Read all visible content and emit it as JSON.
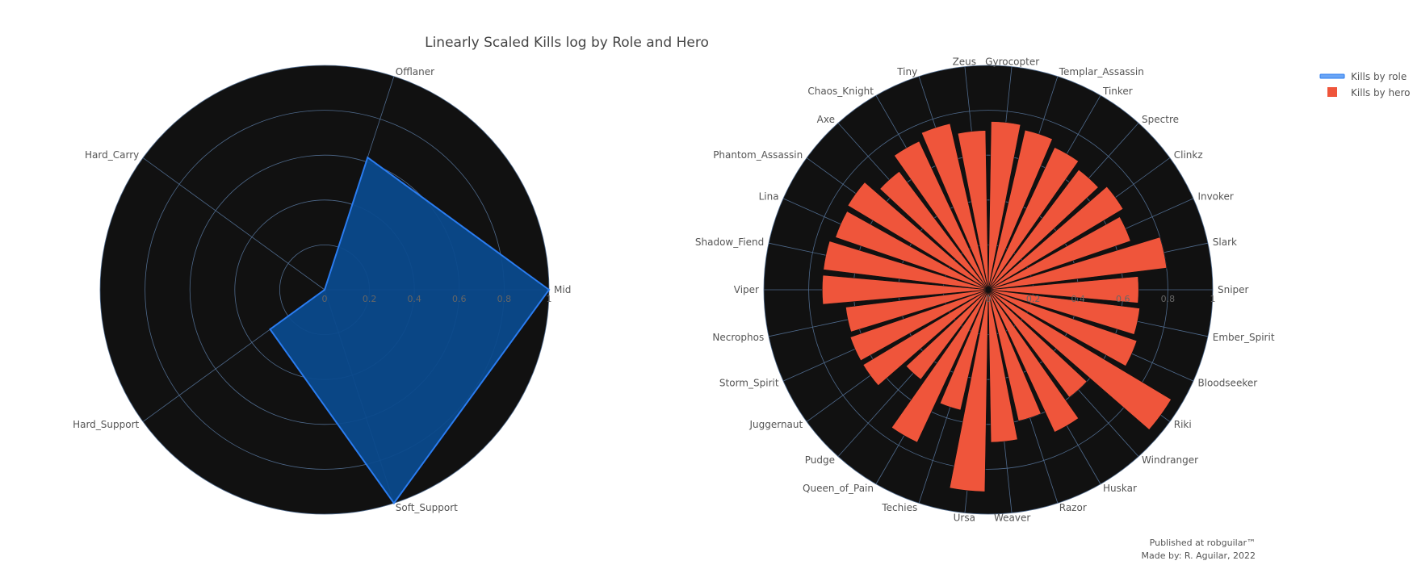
{
  "title": "Linearly Scaled Kills log by Role and Hero",
  "colors": {
    "background": "#ffffff",
    "polar_bg": "#111111",
    "grid": "#4f6a8c",
    "role_fill": "#0b4a8c",
    "role_line": "#2a7cf0",
    "hero_bar": "#ef553b"
  },
  "chart_data": [
    {
      "type": "radar",
      "name": "Kills by role",
      "categories": [
        "Mid",
        "Offlaner",
        "Hard_Carry",
        "Hard_Support",
        "Soft_Support"
      ],
      "values": [
        1.0,
        0.62,
        0.0,
        0.3,
        1.0
      ],
      "radial_range": [
        0,
        1
      ],
      "radial_ticks": [
        "0",
        "0.2",
        "0.4",
        "0.6",
        "0.8",
        "1"
      ]
    },
    {
      "type": "barpolar",
      "name": "Kills by hero",
      "categories": [
        "Sniper",
        "Slark",
        "Invoker",
        "Clinkz",
        "Spectre",
        "Tinker",
        "Templar_Assassin",
        "Gyrocopter",
        "Zeus",
        "Tiny",
        "Chaos_Knight",
        "Axe",
        "Phantom_Assassin",
        "Lina",
        "Shadow_Fiend",
        "Viper",
        "Necrophos",
        "Storm_Spirit",
        "Juggernaut",
        "Pudge",
        "Queen_of_Pain",
        "Techies",
        "Ursa",
        "Weaver",
        "Razor",
        "Huskar",
        "Windranger",
        "Riki",
        "Bloodseeker",
        "Ember_Spirit"
      ],
      "values": [
        0.67,
        0.8,
        0.67,
        0.7,
        0.67,
        0.7,
        0.73,
        0.75,
        0.71,
        0.76,
        0.73,
        0.66,
        0.73,
        0.72,
        0.74,
        0.74,
        0.64,
        0.65,
        0.65,
        0.5,
        0.75,
        0.55,
        0.9,
        0.68,
        0.6,
        0.7,
        0.6,
        0.95,
        0.7,
        0.68
      ],
      "radial_range": [
        0,
        1
      ],
      "radial_ticks": [
        "0",
        "0.2",
        "0.4",
        "0.6",
        "0.8",
        "1"
      ]
    }
  ],
  "legend": {
    "items": [
      {
        "label": "Kills by role",
        "symbol": "line"
      },
      {
        "label": "Kills by hero",
        "symbol": "square"
      }
    ]
  },
  "footer": {
    "line1": "Published at robguilar™",
    "line2": "Made by:  R. Aguilar, 2022"
  }
}
